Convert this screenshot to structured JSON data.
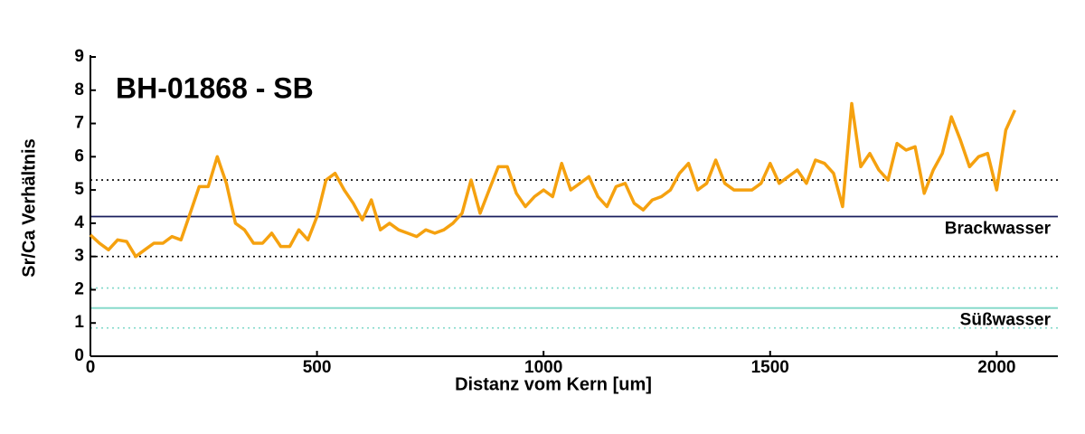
{
  "chart_data": {
    "type": "line",
    "title": "BH-01868 - SB",
    "x_label": "Distanz vom Kern [um]",
    "y_label": "Sr/Ca Verhältnis",
    "x": [
      0,
      20,
      40,
      60,
      80,
      100,
      120,
      140,
      160,
      180,
      200,
      220,
      240,
      260,
      280,
      300,
      320,
      340,
      360,
      380,
      400,
      420,
      440,
      460,
      480,
      500,
      520,
      540,
      560,
      580,
      600,
      620,
      640,
      660,
      680,
      700,
      720,
      740,
      760,
      780,
      800,
      820,
      840,
      860,
      880,
      900,
      920,
      940,
      960,
      980,
      1000,
      1020,
      1040,
      1060,
      1080,
      1100,
      1120,
      1140,
      1160,
      1180,
      1200,
      1220,
      1240,
      1260,
      1280,
      1300,
      1320,
      1340,
      1360,
      1380,
      1400,
      1420,
      1440,
      1460,
      1480,
      1500,
      1520,
      1540,
      1560,
      1580,
      1600,
      1620,
      1640,
      1660,
      1680,
      1700,
      1720,
      1740,
      1760,
      1780,
      1800,
      1820,
      1840,
      1860,
      1880,
      1900,
      1920,
      1940,
      1960,
      1980,
      2000,
      2020,
      2040
    ],
    "series": [
      {
        "color": "#f5a10f",
        "values": [
          3.65,
          3.4,
          3.2,
          3.5,
          3.45,
          3.0,
          3.2,
          3.4,
          3.4,
          3.6,
          3.5,
          4.3,
          5.1,
          5.1,
          6.0,
          5.2,
          4.0,
          3.8,
          3.4,
          3.4,
          3.7,
          3.3,
          3.3,
          3.8,
          3.5,
          4.2,
          5.3,
          5.5,
          5.0,
          4.6,
          4.1,
          4.7,
          3.8,
          4.0,
          3.8,
          3.7,
          3.6,
          3.8,
          3.7,
          3.8,
          4.0,
          4.3,
          5.3,
          4.3,
          5.0,
          5.7,
          5.7,
          4.9,
          4.5,
          4.8,
          5.0,
          4.8,
          5.8,
          5.0,
          5.2,
          5.4,
          4.8,
          4.5,
          5.1,
          5.2,
          4.6,
          4.4,
          4.7,
          4.8,
          5.0,
          5.5,
          5.8,
          5.0,
          5.2,
          5.9,
          5.2,
          5.0,
          5.0,
          5.0,
          5.2,
          5.8,
          5.2,
          5.4,
          5.6,
          5.2,
          5.9,
          5.8,
          5.5,
          4.5,
          7.6,
          5.7,
          6.1,
          5.6,
          5.3,
          6.4,
          6.2,
          6.3,
          4.9,
          5.6,
          6.1,
          7.2,
          6.5,
          5.7,
          6.0,
          6.1,
          5.0,
          6.8,
          7.4
        ]
      }
    ],
    "hlines": [
      {
        "value": 5.3,
        "color": "#000000",
        "dashed": true
      },
      {
        "value": 4.2,
        "color": "#1a1f5e",
        "dashed": false,
        "label": "Brackwasser"
      },
      {
        "value": 3.0,
        "color": "#000000",
        "dashed": true
      },
      {
        "value": 2.05,
        "color": "#7fd8c8",
        "dashed": true
      },
      {
        "value": 1.45,
        "color": "#7fd8c8",
        "dashed": false,
        "label": "Süßwasser"
      },
      {
        "value": 0.85,
        "color": "#7fd8c8",
        "dashed": true
      }
    ],
    "xlim": [
      0,
      2135
    ],
    "ylim": [
      0,
      9
    ],
    "xticks": [
      0,
      500,
      1000,
      1500,
      2000
    ],
    "yticks": [
      0,
      1,
      2,
      3,
      4,
      5,
      6,
      7,
      8,
      9
    ]
  }
}
